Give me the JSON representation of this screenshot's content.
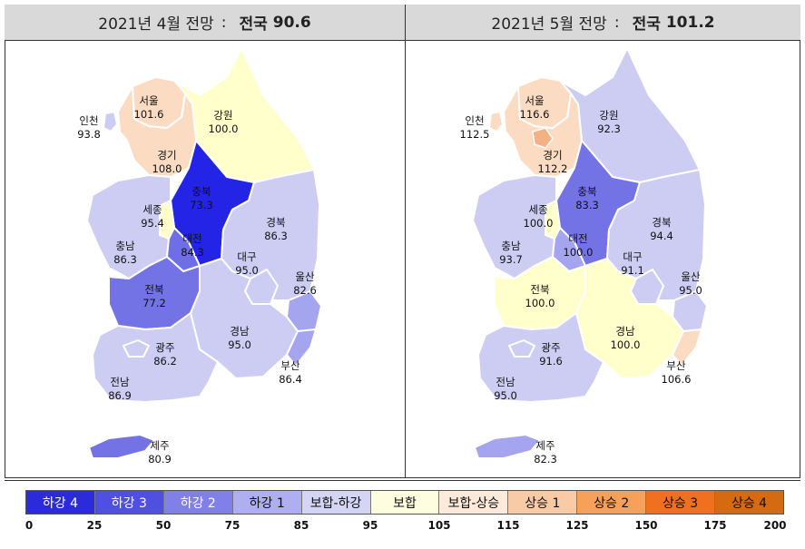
{
  "maps": [
    {
      "title_prefix": "2021년 4월 전망",
      "separator": ":",
      "national_label": "전국",
      "national_value": "90.6",
      "regions": {
        "seoul": {
          "name": "서울",
          "value": "101.6",
          "color": "#fbdcc3"
        },
        "incheon": {
          "name": "인천",
          "value": "93.8",
          "color": "#cdcdf4"
        },
        "gyeonggi": {
          "name": "경기",
          "value": "108.0",
          "color": "#fbdcc3"
        },
        "gangwon": {
          "name": "강원",
          "value": "100.0",
          "color": "#ffffcc"
        },
        "chungbuk": {
          "name": "충북",
          "value": "73.3",
          "color": "#2424e6"
        },
        "sejong": {
          "name": "세종",
          "value": "95.4",
          "color": "#ffffcc"
        },
        "daejeon": {
          "name": "대전",
          "value": "84.3",
          "color": "#6e6ee6"
        },
        "chungnam": {
          "name": "충남",
          "value": "86.3",
          "color": "#cdcdf4"
        },
        "gyeongbuk": {
          "name": "경북",
          "value": "86.3",
          "color": "#cdcdf4"
        },
        "daegu": {
          "name": "대구",
          "value": "95.0",
          "color": "#cdcdf4"
        },
        "ulsan": {
          "name": "울산",
          "value": "82.6",
          "color": "#a4a4ef"
        },
        "jeonbuk": {
          "name": "전북",
          "value": "77.2",
          "color": "#7373e6"
        },
        "gwangju": {
          "name": "광주",
          "value": "86.2",
          "color": "#cdcdf4"
        },
        "jeonnam": {
          "name": "전남",
          "value": "86.9",
          "color": "#cdcdf4"
        },
        "gyeongnam": {
          "name": "경남",
          "value": "95.0",
          "color": "#cdcdf4"
        },
        "busan": {
          "name": "부산",
          "value": "86.4",
          "color": "#a4a4ef"
        },
        "jeju": {
          "name": "제주",
          "value": "80.9",
          "color": "#7373e6"
        }
      }
    },
    {
      "title_prefix": "2021년 5월 전망",
      "separator": ":",
      "national_label": "전국",
      "national_value": "101.2",
      "regions": {
        "seoul": {
          "name": "서울",
          "value": "116.6",
          "color": "#fbdcc3"
        },
        "incheon": {
          "name": "인천",
          "value": "112.5",
          "color": "#fbdcc3"
        },
        "gyeonggi": {
          "name": "경기",
          "value": "112.2",
          "color": "#fbdcc3"
        },
        "gangwon": {
          "name": "강원",
          "value": "92.3",
          "color": "#cdcdf4"
        },
        "chungbuk": {
          "name": "충북",
          "value": "83.3",
          "color": "#7373e6"
        },
        "sejong": {
          "name": "세종",
          "value": "100.0",
          "color": "#ffffcc"
        },
        "daejeon": {
          "name": "대전",
          "value": "100.0",
          "color": "#a4a4ef"
        },
        "chungnam": {
          "name": "충남",
          "value": "93.7",
          "color": "#cdcdf4"
        },
        "gyeongbuk": {
          "name": "경북",
          "value": "94.4",
          "color": "#cdcdf4"
        },
        "daegu": {
          "name": "대구",
          "value": "91.1",
          "color": "#cdcdf4"
        },
        "ulsan": {
          "name": "울산",
          "value": "95.0",
          "color": "#cdcdf4"
        },
        "jeonbuk": {
          "name": "전북",
          "value": "100.0",
          "color": "#ffffcc"
        },
        "gwangju": {
          "name": "광주",
          "value": "91.6",
          "color": "#cdcdf4"
        },
        "jeonnam": {
          "name": "전남",
          "value": "95.0",
          "color": "#cdcdf4"
        },
        "gyeongnam": {
          "name": "경남",
          "value": "100.0",
          "color": "#ffffcc"
        },
        "busan": {
          "name": "부산",
          "value": "106.6",
          "color": "#fbdcc3"
        },
        "jeju": {
          "name": "제주",
          "value": "82.3",
          "color": "#a4a4ef"
        }
      }
    }
  ],
  "seoul_inner_color_may": "#f4b183",
  "legend": {
    "items": [
      {
        "label": "하강 4",
        "color": "#2b2bd9",
        "text_color": "#ffffff"
      },
      {
        "label": "하강 3",
        "color": "#5050e0",
        "text_color": "#ffffff"
      },
      {
        "label": "하강 2",
        "color": "#8080e8",
        "text_color": "#ffffff"
      },
      {
        "label": "하강 1",
        "color": "#aeaef0",
        "text_color": "#111111"
      },
      {
        "label": "보합-하강",
        "color": "#d4d4f5",
        "text_color": "#111111"
      },
      {
        "label": "보합",
        "color": "#fffde0",
        "text_color": "#111111"
      },
      {
        "label": "보합-상승",
        "color": "#fdeadb",
        "text_color": "#111111"
      },
      {
        "label": "상승 1",
        "color": "#f8cba6",
        "text_color": "#111111"
      },
      {
        "label": "상승 2",
        "color": "#f6a05a",
        "text_color": "#111111"
      },
      {
        "label": "상승 3",
        "color": "#f07020",
        "text_color": "#111111"
      },
      {
        "label": "상승 4",
        "color": "#d66a10",
        "text_color": "#111111"
      }
    ],
    "ticks": [
      "0",
      "25",
      "50",
      "75",
      "85",
      "95",
      "105",
      "115",
      "125",
      "150",
      "175",
      "200"
    ]
  }
}
